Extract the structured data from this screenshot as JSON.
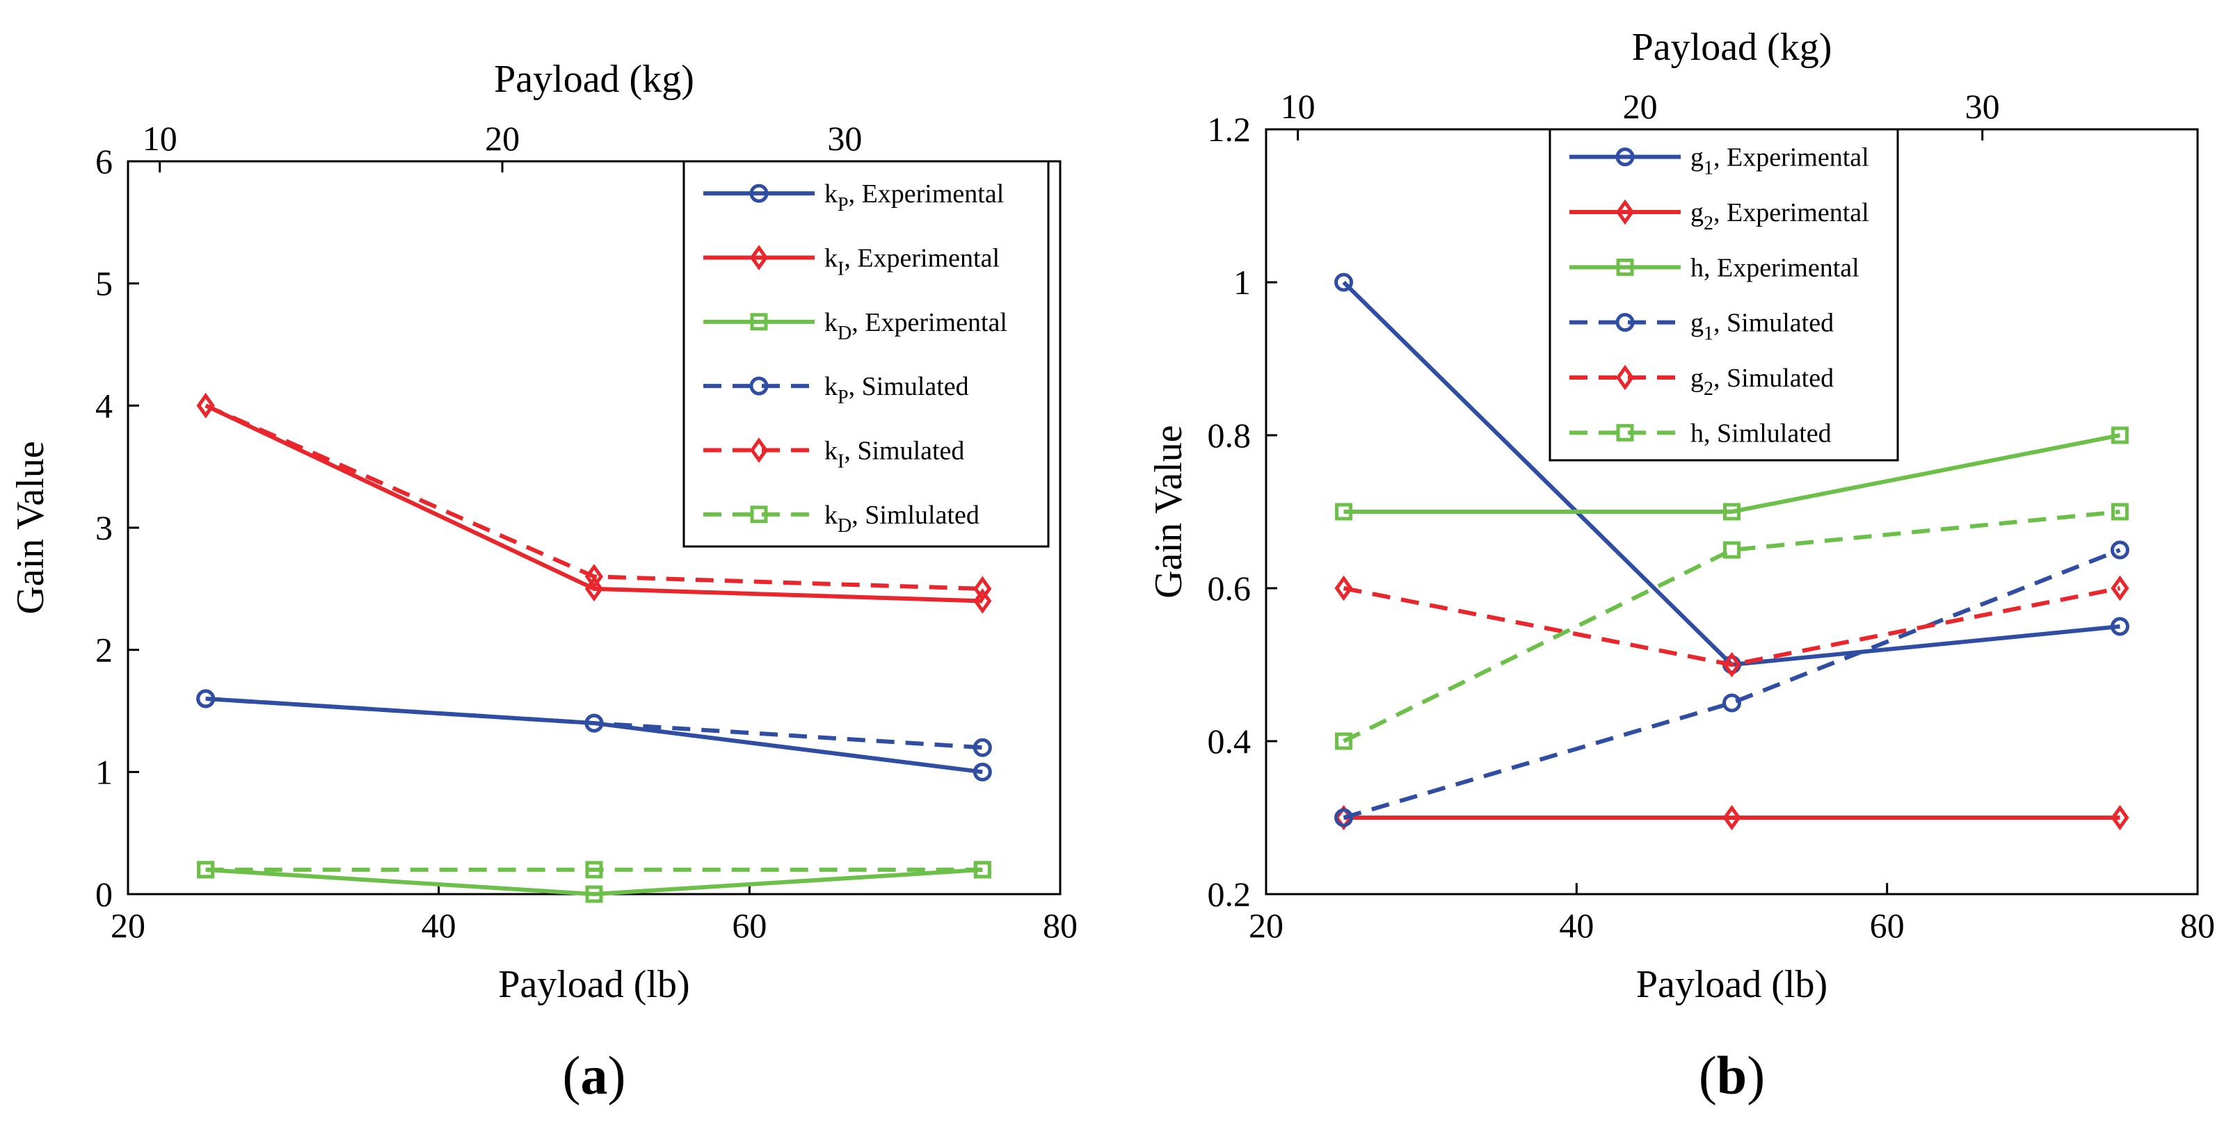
{
  "chart_data": [
    {
      "type": "line",
      "panel_label": "a",
      "title": "",
      "xlabel": "Payload (lb)",
      "ylabel": "Gain Value",
      "x2label": "Payload (kg)",
      "xlim": [
        20,
        80
      ],
      "ylim": [
        0,
        6
      ],
      "x2lim": [
        9.0718,
        36.2874
      ],
      "xticks": [
        20,
        40,
        60,
        80
      ],
      "yticks": [
        0,
        1,
        2,
        3,
        4,
        5,
        6
      ],
      "x2ticks": [
        10,
        20,
        30
      ],
      "x": [
        25,
        50,
        75
      ],
      "legend_position": "top-right",
      "series": [
        {
          "name": "k",
          "sub": "P",
          "suffix": ", Experimental",
          "color": "#2f4ea3",
          "marker": "circle",
          "dashed": false,
          "values": [
            1.6,
            1.4,
            1.0
          ]
        },
        {
          "name": "k",
          "sub": "I",
          "suffix": ", Experimental",
          "color": "#e8262b",
          "marker": "diamond",
          "dashed": false,
          "values": [
            4.0,
            2.5,
            2.4
          ]
        },
        {
          "name": "k",
          "sub": "D",
          "suffix": ", Experimental",
          "color": "#6cc04a",
          "marker": "square",
          "dashed": false,
          "values": [
            0.2,
            0.0,
            0.2
          ]
        },
        {
          "name": "k",
          "sub": "P",
          "suffix": ", Simulated",
          "color": "#2f4ea3",
          "marker": "circle",
          "dashed": true,
          "values": [
            1.6,
            1.4,
            1.2
          ]
        },
        {
          "name": "k",
          "sub": "I",
          "suffix": ", Simulated",
          "color": "#e8262b",
          "marker": "diamond",
          "dashed": true,
          "values": [
            4.0,
            2.6,
            2.5
          ]
        },
        {
          "name": "k",
          "sub": "D",
          "suffix": ", Simlulated",
          "color": "#6cc04a",
          "marker": "square",
          "dashed": true,
          "values": [
            0.2,
            0.2,
            0.2
          ]
        }
      ]
    },
    {
      "type": "line",
      "panel_label": "b",
      "title": "",
      "xlabel": "Payload (lb)",
      "ylabel": "Gain Value",
      "x2label": "Payload (kg)",
      "xlim": [
        20,
        80
      ],
      "ylim": [
        0.2,
        1.2
      ],
      "x2lim": [
        9.0718,
        36.2874
      ],
      "xticks": [
        20,
        40,
        60,
        80
      ],
      "yticks": [
        0.2,
        0.4,
        0.6,
        0.8,
        1,
        1.2
      ],
      "x2ticks": [
        10,
        20,
        30
      ],
      "x": [
        25,
        50,
        75
      ],
      "legend_position": "top-center",
      "series": [
        {
          "name": "g",
          "sub": "1",
          "suffix": ", Experimental",
          "color": "#2f4ea3",
          "marker": "circle",
          "dashed": false,
          "values": [
            1.0,
            0.5,
            0.55
          ]
        },
        {
          "name": "g",
          "sub": "2",
          "suffix": ", Experimental",
          "color": "#e8262b",
          "marker": "diamond",
          "dashed": false,
          "values": [
            0.3,
            0.3,
            0.3
          ]
        },
        {
          "name": "h",
          "sub": "",
          "suffix": ", Experimental",
          "color": "#6cc04a",
          "marker": "square",
          "dashed": false,
          "values": [
            0.7,
            0.7,
            0.8
          ]
        },
        {
          "name": "g",
          "sub": "1",
          "suffix": ", Simulated",
          "color": "#2f4ea3",
          "marker": "circle",
          "dashed": true,
          "values": [
            0.3,
            0.45,
            0.65
          ]
        },
        {
          "name": "g",
          "sub": "2",
          "suffix": ", Simulated",
          "color": "#e8262b",
          "marker": "diamond",
          "dashed": true,
          "values": [
            0.6,
            0.5,
            0.6
          ]
        },
        {
          "name": "h",
          "sub": "",
          "suffix": ", Simlulated",
          "color": "#6cc04a",
          "marker": "square",
          "dashed": true,
          "values": [
            0.4,
            0.65,
            0.7
          ]
        }
      ]
    }
  ]
}
